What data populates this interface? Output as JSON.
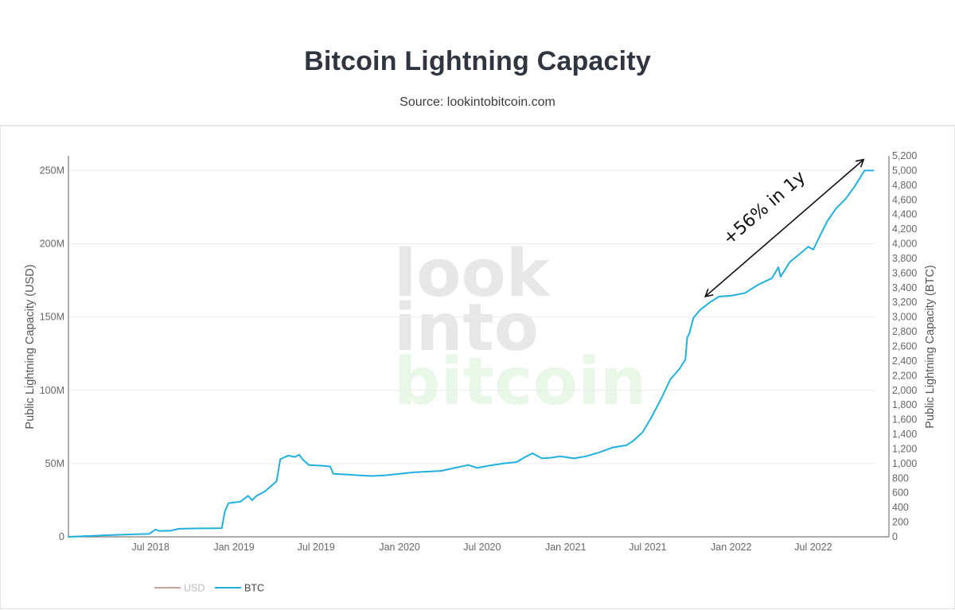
{
  "header": {
    "title": "Bitcoin Lightning Capacity",
    "subtitle": "Source: lookintobitcoin.com"
  },
  "watermark": {
    "line1": "look",
    "line2": "into",
    "line3": "bitcoin"
  },
  "colors": {
    "usd": "#b8958c",
    "btc": "#1fb0df",
    "grid": "#ececec",
    "wm_gray": "#e7e7e7",
    "wm_green": "#e8f7e8"
  },
  "legend": [
    {
      "label": "USD",
      "color": "#b8958c",
      "muted": true
    },
    {
      "label": "BTC",
      "color": "#1fb0df",
      "muted": false
    }
  ],
  "chart_data": {
    "type": "line",
    "y_left": {
      "label": "Public Lightning Capacity (USD)",
      "min": 0,
      "max": 260000000,
      "ticks": [
        0,
        50000000,
        100000000,
        150000000,
        200000000,
        250000000
      ],
      "tick_labels": [
        "0",
        "50M",
        "100M",
        "150M",
        "200M",
        "250M"
      ]
    },
    "y_right": {
      "label": "Public Lightning Capacity (BTC)",
      "min": 0,
      "max": 5200,
      "step": 200
    },
    "x_axis": {
      "start": "2018-01-01",
      "end": "2022-11-15",
      "ticks": [
        {
          "date": "2018-07-01",
          "label": "Jul 2018"
        },
        {
          "date": "2019-01-01",
          "label": "Jan 2019"
        },
        {
          "date": "2019-07-01",
          "label": "Jul 2019"
        },
        {
          "date": "2020-01-01",
          "label": "Jan 2020"
        },
        {
          "date": "2020-07-01",
          "label": "Jul 2020"
        },
        {
          "date": "2021-01-01",
          "label": "Jan 2021"
        },
        {
          "date": "2021-07-01",
          "label": "Jul 2021"
        },
        {
          "date": "2022-01-01",
          "label": "Jan 2022"
        },
        {
          "date": "2022-07-01",
          "label": "Jul 2022"
        }
      ]
    },
    "grid": true,
    "legend_position": "bottom-left",
    "series": [
      {
        "name": "BTC",
        "axis": "right",
        "points": [
          [
            "2018-01-01",
            0
          ],
          [
            "2018-03-01",
            15
          ],
          [
            "2018-05-01",
            30
          ],
          [
            "2018-06-28",
            40
          ],
          [
            "2018-07-12",
            100
          ],
          [
            "2018-07-20",
            80
          ],
          [
            "2018-08-15",
            85
          ],
          [
            "2018-09-01",
            110
          ],
          [
            "2018-10-15",
            115
          ],
          [
            "2018-12-05",
            118
          ],
          [
            "2018-12-12",
            350
          ],
          [
            "2018-12-20",
            460
          ],
          [
            "2019-01-15",
            480
          ],
          [
            "2019-02-01",
            560
          ],
          [
            "2019-02-10",
            500
          ],
          [
            "2019-02-20",
            560
          ],
          [
            "2019-03-10",
            620
          ],
          [
            "2019-03-25",
            700
          ],
          [
            "2019-04-05",
            760
          ],
          [
            "2019-04-13",
            1060
          ],
          [
            "2019-04-20",
            1080
          ],
          [
            "2019-05-01",
            1110
          ],
          [
            "2019-05-15",
            1090
          ],
          [
            "2019-05-25",
            1120
          ],
          [
            "2019-06-01",
            1060
          ],
          [
            "2019-06-15",
            980
          ],
          [
            "2019-07-15",
            970
          ],
          [
            "2019-08-01",
            960
          ],
          [
            "2019-08-08",
            860
          ],
          [
            "2019-09-10",
            850
          ],
          [
            "2019-10-01",
            840
          ],
          [
            "2019-11-01",
            830
          ],
          [
            "2019-12-01",
            840
          ],
          [
            "2020-01-01",
            860
          ],
          [
            "2020-02-01",
            880
          ],
          [
            "2020-03-01",
            890
          ],
          [
            "2020-04-01",
            900
          ],
          [
            "2020-05-01",
            940
          ],
          [
            "2020-06-01",
            980
          ],
          [
            "2020-06-20",
            940
          ],
          [
            "2020-07-15",
            970
          ],
          [
            "2020-08-15",
            1000
          ],
          [
            "2020-09-15",
            1020
          ],
          [
            "2020-10-01",
            1080
          ],
          [
            "2020-10-20",
            1140
          ],
          [
            "2020-11-10",
            1070
          ],
          [
            "2020-12-01",
            1080
          ],
          [
            "2020-12-20",
            1100
          ],
          [
            "2021-01-20",
            1070
          ],
          [
            "2021-02-15",
            1100
          ],
          [
            "2021-03-15",
            1150
          ],
          [
            "2021-04-15",
            1220
          ],
          [
            "2021-05-15",
            1250
          ],
          [
            "2021-06-01",
            1320
          ],
          [
            "2021-06-20",
            1430
          ],
          [
            "2021-07-10",
            1640
          ],
          [
            "2021-08-01",
            1900
          ],
          [
            "2021-08-20",
            2150
          ],
          [
            "2021-09-10",
            2300
          ],
          [
            "2021-09-22",
            2420
          ],
          [
            "2021-09-26",
            2720
          ],
          [
            "2021-10-01",
            2780
          ],
          [
            "2021-10-10",
            2990
          ],
          [
            "2021-10-25",
            3100
          ],
          [
            "2021-11-15",
            3200
          ],
          [
            "2021-12-05",
            3280
          ],
          [
            "2022-01-01",
            3290
          ],
          [
            "2022-02-01",
            3330
          ],
          [
            "2022-03-01",
            3440
          ],
          [
            "2022-04-01",
            3530
          ],
          [
            "2022-04-15",
            3680
          ],
          [
            "2022-04-20",
            3550
          ],
          [
            "2022-05-10",
            3750
          ],
          [
            "2022-06-01",
            3860
          ],
          [
            "2022-06-20",
            3960
          ],
          [
            "2022-07-01",
            3920
          ],
          [
            "2022-07-15",
            4100
          ],
          [
            "2022-08-01",
            4310
          ],
          [
            "2022-08-20",
            4480
          ],
          [
            "2022-09-10",
            4610
          ],
          [
            "2022-10-01",
            4790
          ],
          [
            "2022-10-15",
            4930
          ],
          [
            "2022-10-22",
            5000
          ],
          [
            "2022-11-10",
            5000
          ]
        ]
      }
    ],
    "annotations": [
      {
        "text": "+56% in 1y",
        "type": "double-arrow",
        "from": [
          "2021-11-05",
          3280
        ],
        "to": [
          "2022-10-20",
          5150
        ]
      }
    ]
  }
}
